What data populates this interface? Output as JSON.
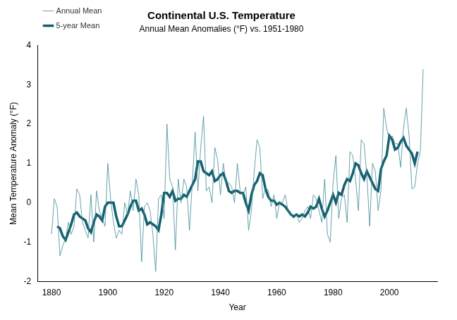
{
  "chart_data": {
    "type": "line",
    "title": "Continental U.S. Temperature",
    "subtitle": "Annual Mean Anomalies (°F) vs. 1951-1980",
    "x_label": "Year",
    "y_label": "Mean Temperature Anomaly (°F)",
    "x": [
      1880,
      1881,
      1882,
      1883,
      1884,
      1885,
      1886,
      1887,
      1888,
      1889,
      1890,
      1891,
      1892,
      1893,
      1894,
      1895,
      1896,
      1897,
      1898,
      1899,
      1900,
      1901,
      1902,
      1903,
      1904,
      1905,
      1906,
      1907,
      1908,
      1909,
      1910,
      1911,
      1912,
      1913,
      1914,
      1915,
      1916,
      1917,
      1918,
      1919,
      1920,
      1921,
      1922,
      1923,
      1924,
      1925,
      1926,
      1927,
      1928,
      1929,
      1930,
      1931,
      1932,
      1933,
      1934,
      1935,
      1936,
      1937,
      1938,
      1939,
      1940,
      1941,
      1942,
      1943,
      1944,
      1945,
      1946,
      1947,
      1948,
      1949,
      1950,
      1951,
      1952,
      1953,
      1954,
      1955,
      1956,
      1957,
      1958,
      1959,
      1960,
      1961,
      1962,
      1963,
      1964,
      1965,
      1966,
      1967,
      1968,
      1969,
      1970,
      1971,
      1972,
      1973,
      1974,
      1975,
      1976,
      1977,
      1978,
      1979,
      1980,
      1981,
      1982,
      1983,
      1984,
      1985,
      1986,
      1987,
      1988,
      1989,
      1990,
      1991,
      1992,
      1993,
      1994,
      1995,
      1996,
      1997,
      1998,
      1999,
      2000,
      2001,
      2002,
      2003,
      2004,
      2005,
      2006,
      2007,
      2008,
      2009,
      2010,
      2011,
      2012
    ],
    "series": [
      {
        "name": "Annual Mean",
        "color": "#3d8b98",
        "line_style": "thin",
        "values": [
          -0.8,
          0.1,
          -0.1,
          -1.35,
          -1.1,
          -0.9,
          -0.5,
          -0.8,
          -0.6,
          0.35,
          0.2,
          -0.5,
          -0.7,
          -0.9,
          0.2,
          -1.0,
          0.3,
          -0.2,
          -0.4,
          -0.6,
          1.0,
          0.1,
          -0.5,
          -0.9,
          -0.7,
          -0.8,
          0.0,
          -0.3,
          0.3,
          -0.2,
          0.6,
          0.2,
          -1.5,
          -0.1,
          0.0,
          -0.2,
          -0.8,
          -1.75,
          0.1,
          0.2,
          -0.4,
          2.0,
          0.6,
          0.4,
          -1.2,
          0.6,
          0.0,
          0.6,
          0.4,
          -0.7,
          0.5,
          1.8,
          0.3,
          1.4,
          2.2,
          0.3,
          0.4,
          0.0,
          1.4,
          1.1,
          0.2,
          1.0,
          0.5,
          0.5,
          0.4,
          0.0,
          1.0,
          0.3,
          0.2,
          0.4,
          -0.7,
          -0.2,
          0.8,
          1.6,
          1.4,
          0.1,
          0.4,
          0.3,
          -0.1,
          0.2,
          -0.4,
          0.0,
          0.0,
          0.2,
          -0.2,
          -0.3,
          -0.4,
          -0.3,
          -0.5,
          -0.4,
          -0.2,
          -0.1,
          -0.4,
          0.2,
          0.1,
          -0.2,
          -0.5,
          0.6,
          -0.8,
          -1.0,
          0.5,
          1.2,
          -0.4,
          0.1,
          0.2,
          -0.5,
          1.3,
          1.2,
          0.6,
          -0.2,
          1.6,
          1.5,
          0.7,
          -0.6,
          1.0,
          0.8,
          -0.2,
          0.3,
          2.4,
          1.9,
          1.6,
          1.7,
          1.5,
          1.5,
          0.9,
          1.9,
          2.4,
          1.7,
          0.35,
          0.4,
          1.0,
          1.3,
          3.4
        ]
      },
      {
        "name": "5-year Mean",
        "color": "#155f6e",
        "line_style": "thick",
        "values": [
          null,
          null,
          -0.6,
          -0.65,
          -0.85,
          -0.95,
          -0.75,
          -0.55,
          -0.3,
          -0.25,
          -0.35,
          -0.4,
          -0.45,
          -0.65,
          -0.75,
          -0.5,
          -0.3,
          -0.35,
          -0.45,
          -0.1,
          0.0,
          0.0,
          0.0,
          -0.35,
          -0.6,
          -0.6,
          -0.45,
          -0.3,
          -0.1,
          0.05,
          0.05,
          -0.2,
          -0.15,
          -0.3,
          -0.55,
          -0.5,
          -0.55,
          -0.6,
          -0.7,
          -0.3,
          0.25,
          0.25,
          0.15,
          0.3,
          0.05,
          0.1,
          0.1,
          0.2,
          0.15,
          0.3,
          0.45,
          0.6,
          1.05,
          1.05,
          0.8,
          0.75,
          0.7,
          0.8,
          0.55,
          0.6,
          0.7,
          0.75,
          0.55,
          0.3,
          0.25,
          0.3,
          0.3,
          0.25,
          0.25,
          0.0,
          -0.2,
          0.2,
          0.45,
          0.55,
          0.75,
          0.7,
          0.35,
          0.15,
          0.05,
          0.05,
          -0.05,
          0.0,
          -0.05,
          -0.1,
          -0.2,
          -0.3,
          -0.35,
          -0.3,
          -0.35,
          -0.3,
          -0.35,
          -0.25,
          -0.1,
          -0.15,
          -0.1,
          0.1,
          -0.15,
          -0.35,
          -0.2,
          0.0,
          0.2,
          0.0,
          0.25,
          0.2,
          0.45,
          0.6,
          0.55,
          0.75,
          1.0,
          0.95,
          0.75,
          0.6,
          0.8,
          0.65,
          0.5,
          0.35,
          0.3,
          0.85,
          1.05,
          1.2,
          1.7,
          1.6,
          1.35,
          1.4,
          1.55,
          1.65,
          1.45,
          1.35,
          1.25,
          1.0,
          1.3,
          null,
          null
        ]
      }
    ],
    "xlim": [
      1875,
      2017
    ],
    "xticks": [
      1880,
      1900,
      1920,
      1940,
      1960,
      1980,
      2000
    ],
    "ylim": [
      -2,
      4
    ],
    "yticks": [
      -2,
      -1,
      0,
      1,
      2,
      3,
      4
    ],
    "grid": false,
    "legend": "upper left"
  }
}
